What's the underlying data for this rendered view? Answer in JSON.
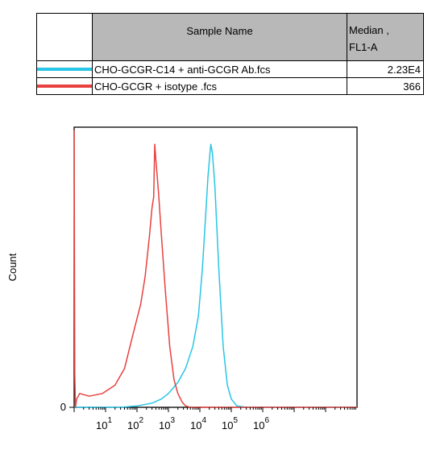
{
  "table": {
    "header_name": "Sample Name",
    "header_median": "Median ,",
    "header_median_2": "FL1-A",
    "rows": [
      {
        "name": "CHO-GCGR-C14 + anti-GCGR Ab.fcs",
        "value": "2.23E4",
        "color": "#29c5e6"
      },
      {
        "name": "CHO-GCGR + isotype .fcs",
        "value": "366",
        "color": "#e8413f"
      }
    ]
  },
  "chart_data": {
    "type": "line",
    "xscale": "log",
    "xlim": [
      1,
      1000000000
    ],
    "ylabel": "Count",
    "yticks": [
      "0"
    ],
    "xticks": [
      {
        "base": "10",
        "exp": "1",
        "value": 10
      },
      {
        "base": "10",
        "exp": "2",
        "value": 100
      },
      {
        "base": "10",
        "exp": "3",
        "value": 1000
      },
      {
        "base": "10",
        "exp": "4",
        "value": 10000
      },
      {
        "base": "10",
        "exp": "5",
        "value": 100000
      },
      {
        "base": "10",
        "exp": "6",
        "value": 1000000
      }
    ],
    "ylim": [
      0,
      100
    ],
    "series": [
      {
        "name": "CHO-GCGR-C14 + anti-GCGR Ab.fcs",
        "color": "#29c5e6",
        "points": [
          [
            1,
            0
          ],
          [
            30,
            0
          ],
          [
            100,
            0.5
          ],
          [
            300,
            1.5
          ],
          [
            600,
            3
          ],
          [
            1000,
            5
          ],
          [
            2000,
            9
          ],
          [
            3500,
            14
          ],
          [
            6000,
            22
          ],
          [
            9000,
            33
          ],
          [
            12000,
            50
          ],
          [
            15000,
            68
          ],
          [
            18000,
            83
          ],
          [
            21000,
            92
          ],
          [
            22300,
            95
          ],
          [
            25000,
            92
          ],
          [
            30000,
            80
          ],
          [
            40000,
            50
          ],
          [
            55000,
            22
          ],
          [
            75000,
            8
          ],
          [
            100000,
            3
          ],
          [
            150000,
            0.5
          ],
          [
            300000,
            0
          ],
          [
            1000000000,
            0
          ]
        ]
      },
      {
        "name": "CHO-GCGR + isotype .fcs",
        "color": "#e8413f",
        "points": [
          [
            1,
            100
          ],
          [
            1.05,
            12
          ],
          [
            1.1,
            0
          ],
          [
            1.2,
            3
          ],
          [
            1.5,
            5
          ],
          [
            3,
            4
          ],
          [
            8,
            5
          ],
          [
            20,
            8
          ],
          [
            40,
            14
          ],
          [
            60,
            22
          ],
          [
            90,
            30
          ],
          [
            130,
            37
          ],
          [
            180,
            47
          ],
          [
            250,
            62
          ],
          [
            300,
            72
          ],
          [
            340,
            76
          ],
          [
            366,
            95
          ],
          [
            400,
            89
          ],
          [
            480,
            78
          ],
          [
            600,
            62
          ],
          [
            800,
            42
          ],
          [
            1100,
            22
          ],
          [
            1500,
            10
          ],
          [
            2000,
            5
          ],
          [
            2700,
            2
          ],
          [
            3500,
            0.5
          ],
          [
            5000,
            0
          ],
          [
            1000000000,
            0
          ]
        ]
      }
    ]
  }
}
